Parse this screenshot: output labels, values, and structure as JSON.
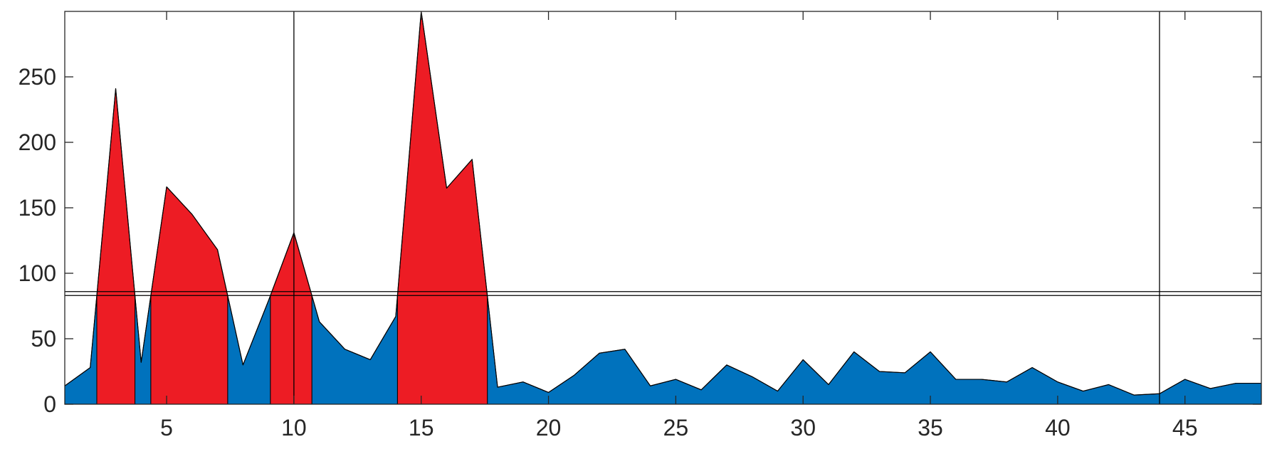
{
  "chart_data": {
    "type": "area",
    "title": "",
    "xlabel": "",
    "ylabel": "",
    "xlim": [
      1,
      48
    ],
    "ylim": [
      0,
      300
    ],
    "grid": false,
    "x_ticks": [
      5,
      10,
      15,
      20,
      25,
      30,
      35,
      40,
      45
    ],
    "y_ticks": [
      0,
      50,
      100,
      150,
      200,
      250
    ],
    "x_tick_labels": [
      "5",
      "10",
      "15",
      "20",
      "25",
      "30",
      "35",
      "40",
      "45"
    ],
    "y_tick_labels": [
      "0",
      "50",
      "100",
      "150",
      "200",
      "250"
    ],
    "x": [
      1,
      2,
      3,
      4,
      5,
      6,
      7,
      8,
      9,
      10,
      11,
      12,
      13,
      14,
      15,
      16,
      17,
      18,
      19,
      20,
      21,
      22,
      23,
      24,
      25,
      26,
      27,
      28,
      29,
      30,
      31,
      32,
      33,
      34,
      35,
      36,
      37,
      38,
      39,
      40,
      41,
      42,
      43,
      44,
      45,
      46,
      47,
      48
    ],
    "series": [
      {
        "values": [
          14,
          28,
          241,
          32,
          166,
          145,
          118,
          30,
          79,
          131,
          63,
          42,
          34,
          67,
          300,
          165,
          187,
          13,
          17,
          9,
          22,
          39,
          42,
          14,
          19,
          11,
          30,
          21,
          10,
          34,
          15,
          40,
          25,
          24,
          40,
          19,
          19,
          17,
          28,
          17,
          10,
          15,
          7,
          8,
          19,
          12,
          16,
          16
        ]
      }
    ],
    "threshold_lines": [
      83,
      86
    ],
    "vertical_lines": [
      10,
      44
    ],
    "colors": {
      "below_threshold": "#0072bd",
      "above_threshold": "#ed1c24",
      "axis": "#262626",
      "reference_line": "#000000"
    }
  }
}
